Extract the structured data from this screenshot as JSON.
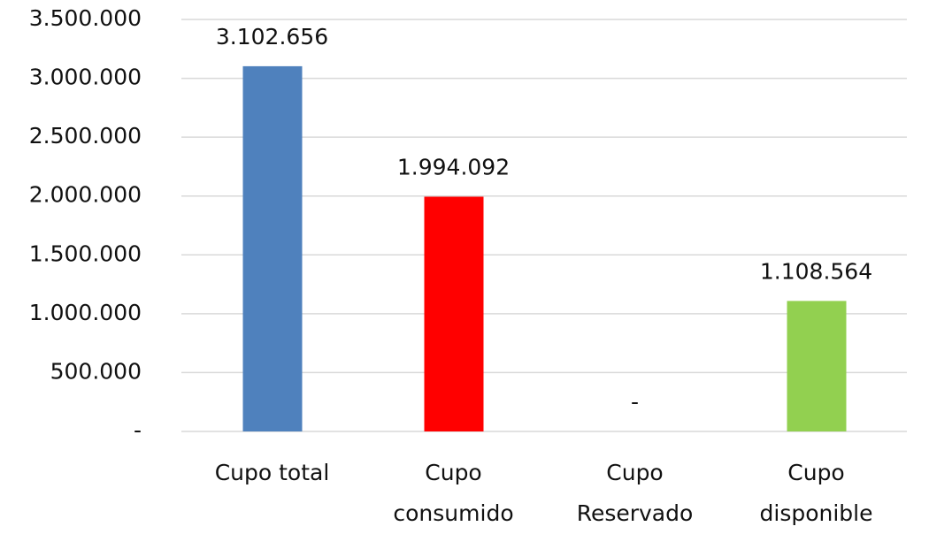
{
  "chart_data": {
    "type": "bar",
    "categories": [
      "Cupo total",
      "Cupo\nconsumido",
      "Cupo\nReservado",
      "Cupo\ndisponible"
    ],
    "values": [
      3102656,
      1994092,
      0,
      1108564
    ],
    "value_labels": [
      "3.102.656",
      "1.994.092",
      "-",
      "1.108.564"
    ],
    "colors": [
      "#4f81bd",
      "#ff0000",
      "#a5a5a5",
      "#92d050"
    ],
    "ylim": [
      0,
      3500000
    ],
    "yticks": [
      {
        "value": 0,
        "label": "-"
      },
      {
        "value": 500000,
        "label": "500.000"
      },
      {
        "value": 1000000,
        "label": "1.000.000"
      },
      {
        "value": 1500000,
        "label": "1.500.000"
      },
      {
        "value": 2000000,
        "label": "2.000.000"
      },
      {
        "value": 2500000,
        "label": "2.500.000"
      },
      {
        "value": 3000000,
        "label": "3.000.000"
      },
      {
        "value": 3500000,
        "label": "3.500.000"
      }
    ],
    "grid": true
  }
}
